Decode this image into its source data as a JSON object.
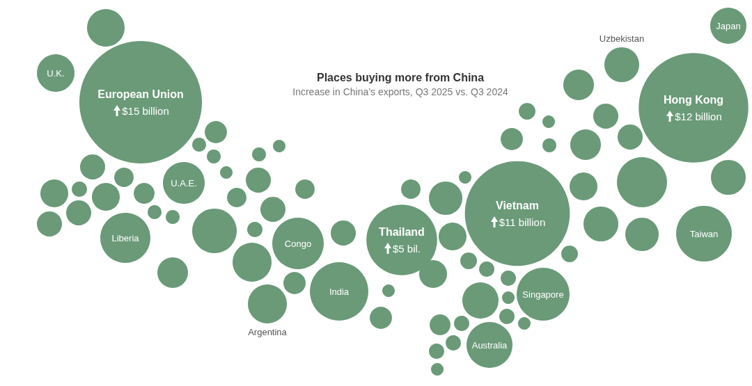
{
  "chart_data": {
    "type": "other",
    "title": "Places buying more from China",
    "subtitle": "Increase in China’s exports, Q3 2025 vs. Q3 2024",
    "color": "#6a9a78",
    "categories": [
      null,
      "U.K.",
      "European Union",
      null,
      null,
      null,
      null,
      null,
      null,
      null,
      null,
      null,
      "U.A.E.",
      null,
      null,
      null,
      null,
      null,
      null,
      null,
      null,
      null,
      null,
      "Liberia",
      null,
      null,
      null,
      "Congo",
      null,
      null,
      null,
      null,
      "Argentina",
      "India",
      null,
      null,
      "Thailand",
      null,
      null,
      null,
      null,
      null,
      null,
      null,
      "Vietnam",
      null,
      null,
      null,
      null,
      null,
      null,
      null,
      null,
      "Singapore",
      null,
      null,
      null,
      null,
      null,
      null,
      null,
      "Australia",
      null,
      null,
      "Uzbekistan",
      null,
      null,
      null,
      null,
      null,
      null,
      "Hong Kong",
      "Japan",
      null,
      "Taiwan"
    ],
    "values": [
      null,
      null,
      15,
      null,
      null,
      null,
      null,
      null,
      null,
      null,
      null,
      null,
      null,
      null,
      null,
      null,
      null,
      null,
      null,
      null,
      null,
      null,
      null,
      null,
      null,
      null,
      null,
      null,
      null,
      null,
      null,
      null,
      null,
      null,
      null,
      null,
      5,
      null,
      null,
      null,
      null,
      null,
      null,
      null,
      11,
      null,
      null,
      null,
      null,
      null,
      null,
      null,
      null,
      null,
      null,
      null,
      null,
      null,
      null,
      null,
      null,
      null,
      null,
      null,
      null,
      null,
      null,
      null,
      null,
      null,
      null,
      12,
      null,
      null,
      null
    ],
    "value_labels": [
      null,
      null,
      "$15 billion",
      null,
      null,
      null,
      null,
      null,
      null,
      null,
      null,
      null,
      null,
      null,
      null,
      null,
      null,
      null,
      null,
      null,
      null,
      null,
      null,
      null,
      null,
      null,
      null,
      null,
      null,
      null,
      null,
      null,
      null,
      null,
      null,
      null,
      "$5 bil.",
      null,
      null,
      null,
      null,
      null,
      null,
      null,
      "$11 billion",
      null,
      null,
      null,
      null,
      null,
      null,
      null,
      null,
      null,
      null,
      null,
      null,
      null,
      null,
      null,
      null,
      null,
      null,
      null,
      null,
      null,
      null,
      null,
      null,
      null,
      null,
      "$12 billion",
      null,
      null,
      null
    ]
  }
}
